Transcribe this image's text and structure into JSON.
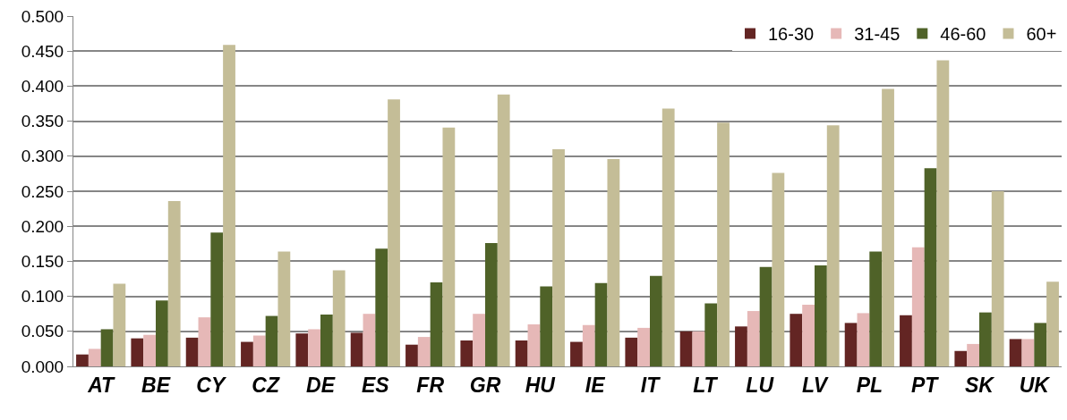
{
  "chart_data": {
    "type": "bar",
    "categories": [
      "AT",
      "BE",
      "CY",
      "CZ",
      "DE",
      "ES",
      "FR",
      "GR",
      "HU",
      "IE",
      "IT",
      "LT",
      "LU",
      "LV",
      "PL",
      "PT",
      "SK",
      "UK"
    ],
    "series": [
      {
        "name": "16-30",
        "color": "#632523",
        "values": [
          0.017,
          0.04,
          0.041,
          0.035,
          0.047,
          0.048,
          0.031,
          0.037,
          0.037,
          0.035,
          0.041,
          0.05,
          0.057,
          0.075,
          0.062,
          0.073,
          0.022,
          0.039
        ]
      },
      {
        "name": "31-45",
        "color": "#e6b8b7",
        "values": [
          0.025,
          0.045,
          0.07,
          0.044,
          0.053,
          0.075,
          0.042,
          0.075,
          0.06,
          0.059,
          0.055,
          0.05,
          0.079,
          0.088,
          0.076,
          0.17,
          0.032,
          0.039
        ]
      },
      {
        "name": "46-60",
        "color": "#4f6228",
        "values": [
          0.053,
          0.094,
          0.191,
          0.072,
          0.074,
          0.168,
          0.12,
          0.176,
          0.114,
          0.119,
          0.129,
          0.09,
          0.142,
          0.144,
          0.164,
          0.283,
          0.077,
          0.062
        ]
      },
      {
        "name": "60+",
        "color": "#c4bd97",
        "values": [
          0.118,
          0.236,
          0.459,
          0.164,
          0.137,
          0.381,
          0.341,
          0.388,
          0.31,
          0.296,
          0.368,
          0.348,
          0.276,
          0.344,
          0.396,
          0.437,
          0.25,
          0.121
        ]
      }
    ],
    "ylim": [
      0,
      0.5
    ],
    "yticks": [
      {
        "value": 0,
        "label": "0.000"
      },
      {
        "value": 0.05,
        "label": "0.050"
      },
      {
        "value": 0.1,
        "label": "0.100"
      },
      {
        "value": 0.15,
        "label": "0.150"
      },
      {
        "value": 0.2,
        "label": "0.200"
      },
      {
        "value": 0.25,
        "label": "0.250"
      },
      {
        "value": 0.3,
        "label": "0.300"
      },
      {
        "value": 0.35,
        "label": "0.350"
      },
      {
        "value": 0.4,
        "label": "0.400"
      },
      {
        "value": 0.45,
        "label": "0.450"
      },
      {
        "value": 0.5,
        "label": "0.500"
      }
    ],
    "grid": "y",
    "legend": "top right"
  }
}
